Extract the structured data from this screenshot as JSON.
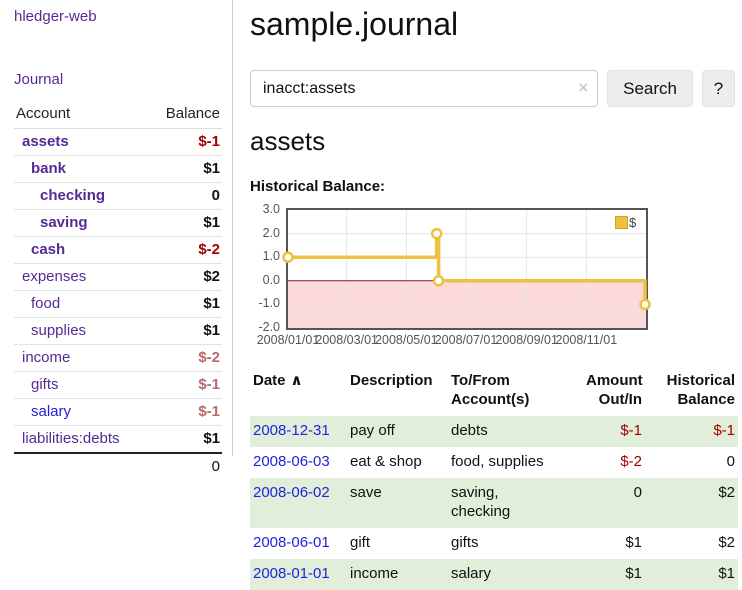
{
  "colors": {
    "purple_link": "#552a94",
    "blue_link": "#2222dd",
    "negative": "#a40000",
    "negative_muted": "#b46a6a",
    "row_green": "#e0eeda",
    "chart_line": "#edc240",
    "sidebar_divider": "#cccccc"
  },
  "sidebar": {
    "app_title": "hledger-web",
    "journal_link": "Journal",
    "accounts": {
      "header_account": "Account",
      "header_balance": "Balance",
      "rows": [
        {
          "name": "assets",
          "balance": "$-1",
          "level": 1,
          "bold": true,
          "balance_class": "neg-strong",
          "link_style": "purple"
        },
        {
          "name": "bank",
          "balance": "$1",
          "level": 2,
          "bold": true,
          "balance_class": "",
          "link_style": "purple"
        },
        {
          "name": "checking",
          "balance": "0",
          "level": 3,
          "bold": true,
          "balance_class": "",
          "link_style": "purple"
        },
        {
          "name": "saving",
          "balance": "$1",
          "level": 3,
          "bold": true,
          "balance_class": "",
          "link_style": "purple"
        },
        {
          "name": "cash",
          "balance": "$-2",
          "level": 2,
          "bold": true,
          "balance_class": "neg-strong",
          "link_style": "purple"
        },
        {
          "name": "expenses",
          "balance": "$2",
          "level": 1,
          "bold": false,
          "balance_class": "",
          "link_style": "purple"
        },
        {
          "name": "food",
          "balance": "$1",
          "level": 2,
          "bold": false,
          "balance_class": "",
          "link_style": "purple"
        },
        {
          "name": "supplies",
          "balance": "$1",
          "level": 2,
          "bold": false,
          "balance_class": "",
          "link_style": "purple"
        },
        {
          "name": "income",
          "balance": "$-2",
          "level": 1,
          "bold": false,
          "balance_class": "neg-muted",
          "link_style": "purple"
        },
        {
          "name": "gifts",
          "balance": "$-1",
          "level": 2,
          "bold": false,
          "balance_class": "neg-muted",
          "link_style": "purple"
        },
        {
          "name": "salary",
          "balance": "$-1",
          "level": 2,
          "bold": false,
          "balance_class": "neg-muted",
          "link_style": "blue"
        },
        {
          "name": "liabilities:debts",
          "balance": "$1",
          "level": 1,
          "bold": false,
          "balance_class": "",
          "link_style": "purple"
        }
      ],
      "total": "0"
    }
  },
  "main": {
    "title": "sample.journal",
    "search": {
      "value": "inacct:assets",
      "clear_icon": "×",
      "search_button": "Search",
      "help_button": "?"
    },
    "account_heading": "assets",
    "chart_heading": "Historical Balance:"
  },
  "chart_data": {
    "type": "line",
    "title": "Historical Balance:",
    "step": true,
    "x_start": "2008-01-01",
    "x_end": "2009-01-01",
    "ylim": [
      -2.0,
      3.0
    ],
    "yticks": [
      3.0,
      2.0,
      1.0,
      0.0,
      -1.0,
      -2.0
    ],
    "xticks": [
      {
        "date": "2008-01-01",
        "label": "2008/01/01"
      },
      {
        "date": "2008-03-01",
        "label": "2008/03/01"
      },
      {
        "date": "2008-05-01",
        "label": "2008/05/01"
      },
      {
        "date": "2008-07-01",
        "label": "2008/07/01"
      },
      {
        "date": "2008-09-01",
        "label": "2008/09/01"
      },
      {
        "date": "2008-11-01",
        "label": "2008/11/01"
      }
    ],
    "series": [
      {
        "name": "$",
        "color": "#edc240",
        "points": [
          {
            "x": "2008-01-01",
            "y": 1.0
          },
          {
            "x": "2008-06-01",
            "y": 2.0
          },
          {
            "x": "2008-06-03",
            "y": 0.0
          },
          {
            "x": "2008-12-31",
            "y": -1.0
          }
        ]
      }
    ],
    "legend": {
      "label": "$",
      "position": "top-right"
    },
    "grid": true,
    "grid_color": "#e6e6e6",
    "border_color": "#545454",
    "zero_line_color": "#8b1a1a",
    "negative_fill_color": "#fcdada",
    "point_fill": "#ffffff"
  },
  "register": {
    "headers": {
      "date": "Date",
      "sort_icon": "∧",
      "description": "Description",
      "accounts": "To/From\nAccount(s)",
      "amount": "Amount\nOut/In",
      "balance": "Historical\nBalance"
    },
    "rows": [
      {
        "date": "2008-12-31",
        "description": "pay off",
        "accounts": "debts",
        "amount": "$-1",
        "amount_neg": true,
        "balance": "$-1",
        "balance_neg": true
      },
      {
        "date": "2008-06-03",
        "description": "eat & shop",
        "accounts": "food, supplies",
        "amount": "$-2",
        "amount_neg": true,
        "balance": "0",
        "balance_neg": false
      },
      {
        "date": "2008-06-02",
        "description": "save",
        "accounts": "saving,\nchecking",
        "amount": "0",
        "amount_neg": false,
        "balance": "$2",
        "balance_neg": false
      },
      {
        "date": "2008-06-01",
        "description": "gift",
        "accounts": "gifts",
        "amount": "$1",
        "amount_neg": false,
        "balance": "$2",
        "balance_neg": false
      },
      {
        "date": "2008-01-01",
        "description": "income",
        "accounts": "salary",
        "amount": "$1",
        "amount_neg": false,
        "balance": "$1",
        "balance_neg": false
      }
    ]
  }
}
